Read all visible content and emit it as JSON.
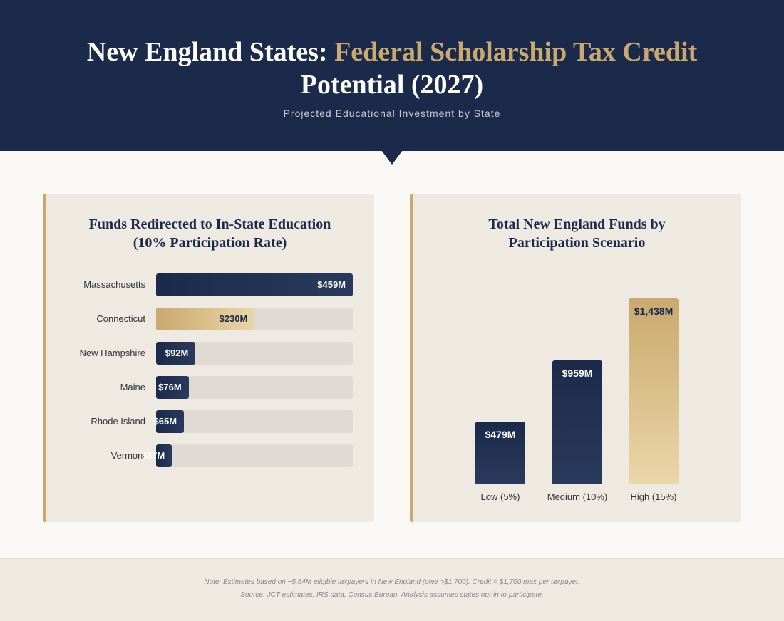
{
  "header": {
    "title_start": "New England States:",
    "title_highlight": "Federal Scholarship Tax Credit",
    "title_end": "Potential (2027)",
    "subtitle": "Projected Educational Investment by State"
  },
  "chart_data": [
    {
      "type": "hbar",
      "title": "Funds Redirected to In-State Education (10% Participation Rate)",
      "categories": [
        "Massachusetts",
        "Connecticut",
        "New Hampshire",
        "Maine",
        "Rhode Island",
        "Vermont"
      ],
      "values": [
        459,
        230,
        92,
        76,
        65,
        37
      ],
      "value_labels": [
        "$459M",
        "$230M",
        "$92M",
        "$76M",
        "$65M",
        "$37M"
      ],
      "colors": [
        "#1b2a4a",
        "#c9a96e",
        "#1b2a4a",
        "#1b2a4a",
        "#1b2a4a",
        "#1b2a4a"
      ],
      "xlim": [
        0,
        459
      ]
    },
    {
      "type": "bar",
      "title": "Total New England Funds by Participation Scenario",
      "categories": [
        "Low (5%)",
        "Medium (10%)",
        "High (15%)"
      ],
      "values": [
        479,
        959,
        1438
      ],
      "value_labels": [
        "$479M",
        "$959M",
        "$1,438M"
      ],
      "colors": [
        "#1b2a4a",
        "#1b2a4a",
        "#c9a96e"
      ],
      "ylim": [
        0,
        1438
      ]
    }
  ],
  "footer": {
    "notes": [
      "Note: Estimates based on ~5.64M eligible taxpayers in New England (owe >$1,700). Credit = $1,700 max per taxpayer.",
      "Source: JCT estimates, IRS data, Census Bureau. Analysis assumes states opt-in to participate."
    ]
  }
}
